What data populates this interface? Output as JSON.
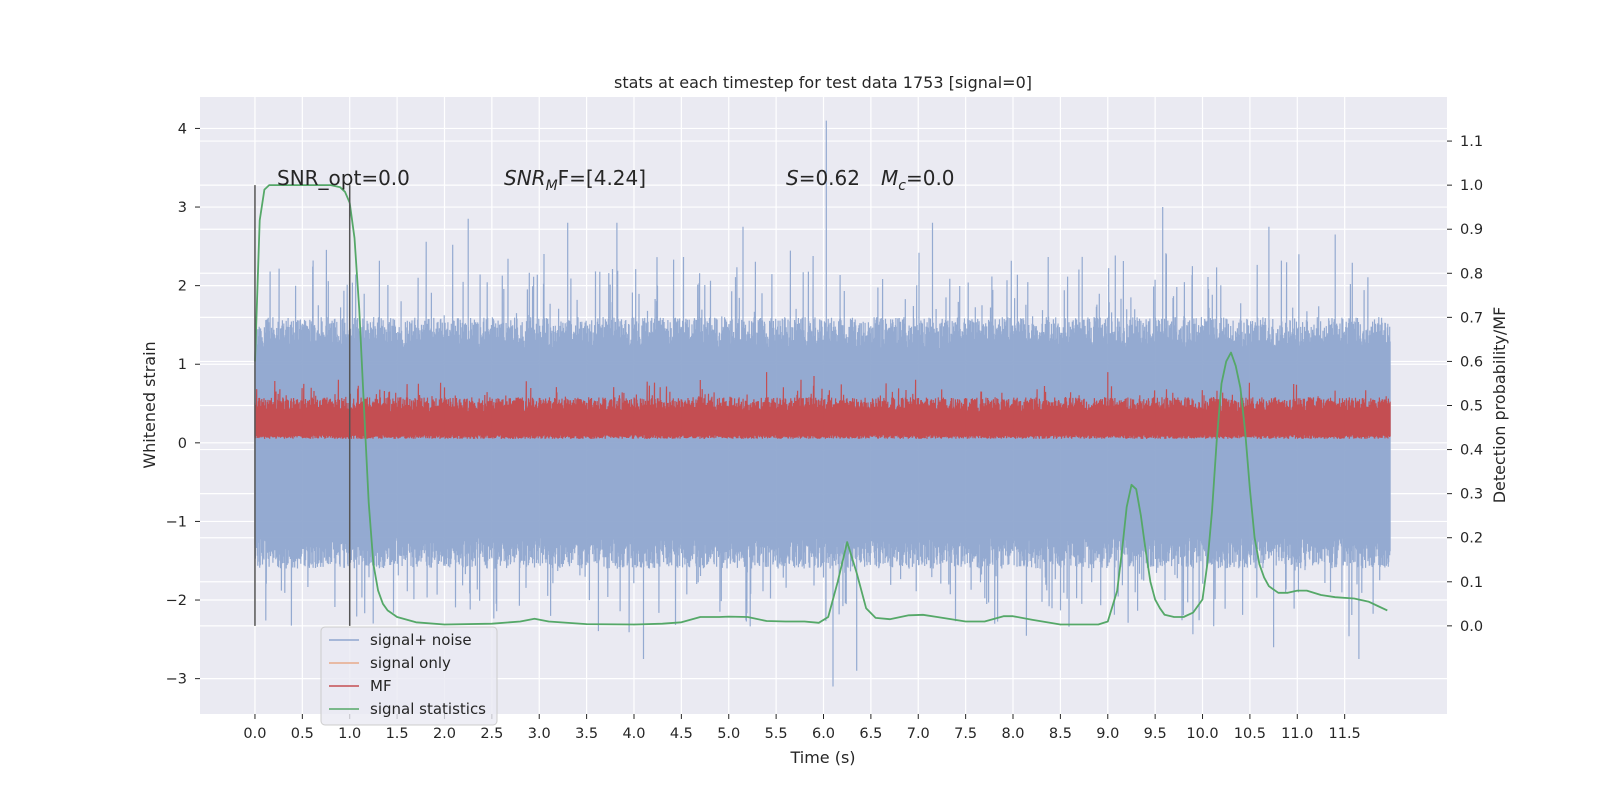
{
  "chart_data": {
    "type": "line",
    "title": "stats at each timestep for test data 1753 [signal=0]",
    "xlabel": "Time (s)",
    "ylabel": "Whitened strain",
    "ylabel_right": "Detection probability/MF",
    "xlim": [
      -0.58,
      12.58
    ],
    "ylim": [
      -3.45,
      4.4
    ],
    "ylim_right": [
      -0.2,
      1.2
    ],
    "x_ticks": [
      "0.0",
      "0.5",
      "1.0",
      "1.5",
      "2.0",
      "2.5",
      "3.0",
      "3.5",
      "4.0",
      "4.5",
      "5.0",
      "5.5",
      "6.0",
      "6.5",
      "7.0",
      "7.5",
      "8.0",
      "8.5",
      "9.0",
      "9.5",
      "10.0",
      "10.5",
      "11.0",
      "11.5"
    ],
    "y_ticks": [
      {
        "v": 4,
        "t": "4"
      },
      {
        "v": 3,
        "t": "3"
      },
      {
        "v": 2,
        "t": "2"
      },
      {
        "v": 1,
        "t": "1"
      },
      {
        "v": 0,
        "t": "0"
      },
      {
        "v": -1,
        "t": "−1"
      },
      {
        "v": -2,
        "t": "−2"
      },
      {
        "v": -3,
        "t": "−3"
      }
    ],
    "y_ticks_right": [
      "0.0",
      "0.1",
      "0.2",
      "0.3",
      "0.4",
      "0.5",
      "0.6",
      "0.7",
      "0.8",
      "0.9",
      "1.0",
      "1.1"
    ],
    "grid": true,
    "legend_position": "bottom-left",
    "annotations": {
      "snr_opt": "SNR_opt=0.0",
      "snr_mf_sym": "SNR",
      "snr_mf_sub": "M",
      "snr_mf_rest": "F=[4.24]",
      "s_sym": "S",
      "s_rest": "=0.62",
      "mc_sym": "M",
      "mc_sub": "c",
      "mc_rest": "=0.0"
    },
    "vertical_markers": [
      0.0,
      1.0
    ],
    "series": [
      {
        "name": "signal+ noise",
        "color": "#8fa6cf",
        "axis": "left",
        "kind": "noise",
        "x_range": [
          0.0,
          11.98
        ],
        "band_upper": [
          1.2,
          1.6
        ],
        "band_lower": [
          -1.2,
          -1.6
        ],
        "spikes": [
          [
            6.03,
            4.1
          ],
          [
            9.58,
            3.0
          ],
          [
            2.25,
            2.85
          ],
          [
            3.3,
            2.8
          ],
          [
            3.82,
            2.8
          ],
          [
            5.15,
            2.75
          ],
          [
            7.15,
            2.8
          ],
          [
            10.7,
            2.75
          ],
          [
            11.4,
            2.65
          ],
          [
            6.1,
            -3.1
          ],
          [
            6.35,
            -2.9
          ],
          [
            4.1,
            -2.75
          ],
          [
            10.75,
            -2.6
          ],
          [
            11.65,
            -2.75
          ]
        ]
      },
      {
        "name": "signal only",
        "color": "#e8a98a",
        "axis": "left",
        "kind": "flat",
        "values": []
      },
      {
        "name": "MF",
        "color": "#c44e52",
        "axis": "left",
        "kind": "mf",
        "x_range": [
          0.0,
          11.98
        ],
        "band": [
          0.05,
          0.55
        ],
        "spikes": [
          [
            5.4,
            0.9
          ],
          [
            9.0,
            0.9
          ],
          [
            5.9,
            0.85
          ],
          [
            4.7,
            0.8
          ]
        ]
      },
      {
        "name": "signal statistics",
        "color": "#55a868",
        "axis": "right",
        "kind": "line",
        "x": [
          0.0,
          0.05,
          0.1,
          0.15,
          0.2,
          0.3,
          0.5,
          0.8,
          0.9,
          0.95,
          1.0,
          1.05,
          1.1,
          1.15,
          1.2,
          1.25,
          1.3,
          1.35,
          1.4,
          1.5,
          1.7,
          2.0,
          2.5,
          2.8,
          2.95,
          3.1,
          3.5,
          4.0,
          4.3,
          4.5,
          4.7,
          4.9,
          5.0,
          5.2,
          5.4,
          5.6,
          5.8,
          5.95,
          6.05,
          6.15,
          6.25,
          6.35,
          6.45,
          6.55,
          6.7,
          6.9,
          7.05,
          7.2,
          7.5,
          7.7,
          7.9,
          8.0,
          8.2,
          8.5,
          8.9,
          9.0,
          9.1,
          9.15,
          9.2,
          9.25,
          9.3,
          9.35,
          9.4,
          9.45,
          9.5,
          9.55,
          9.6,
          9.7,
          9.8,
          9.9,
          10.0,
          10.05,
          10.1,
          10.15,
          10.2,
          10.25,
          10.3,
          10.35,
          10.4,
          10.45,
          10.5,
          10.55,
          10.6,
          10.65,
          10.7,
          10.8,
          10.9,
          11.0,
          11.1,
          11.25,
          11.4,
          11.6,
          11.75,
          11.85,
          11.95
        ],
        "values": [
          0.6,
          0.92,
          0.99,
          1.0,
          1.0,
          1.0,
          1.0,
          1.0,
          0.995,
          0.985,
          0.96,
          0.88,
          0.72,
          0.5,
          0.28,
          0.14,
          0.08,
          0.05,
          0.035,
          0.02,
          0.008,
          0.003,
          0.005,
          0.01,
          0.016,
          0.01,
          0.004,
          0.003,
          0.005,
          0.008,
          0.02,
          0.02,
          0.021,
          0.02,
          0.011,
          0.01,
          0.01,
          0.007,
          0.02,
          0.1,
          0.19,
          0.12,
          0.04,
          0.018,
          0.015,
          0.024,
          0.025,
          0.02,
          0.01,
          0.01,
          0.022,
          0.022,
          0.014,
          0.003,
          0.003,
          0.01,
          0.08,
          0.17,
          0.27,
          0.32,
          0.31,
          0.25,
          0.17,
          0.1,
          0.06,
          0.04,
          0.025,
          0.02,
          0.02,
          0.03,
          0.06,
          0.14,
          0.26,
          0.42,
          0.55,
          0.6,
          0.62,
          0.59,
          0.54,
          0.44,
          0.31,
          0.2,
          0.14,
          0.11,
          0.09,
          0.075,
          0.075,
          0.08,
          0.08,
          0.07,
          0.065,
          0.062,
          0.055,
          0.045,
          0.035
        ]
      }
    ]
  }
}
